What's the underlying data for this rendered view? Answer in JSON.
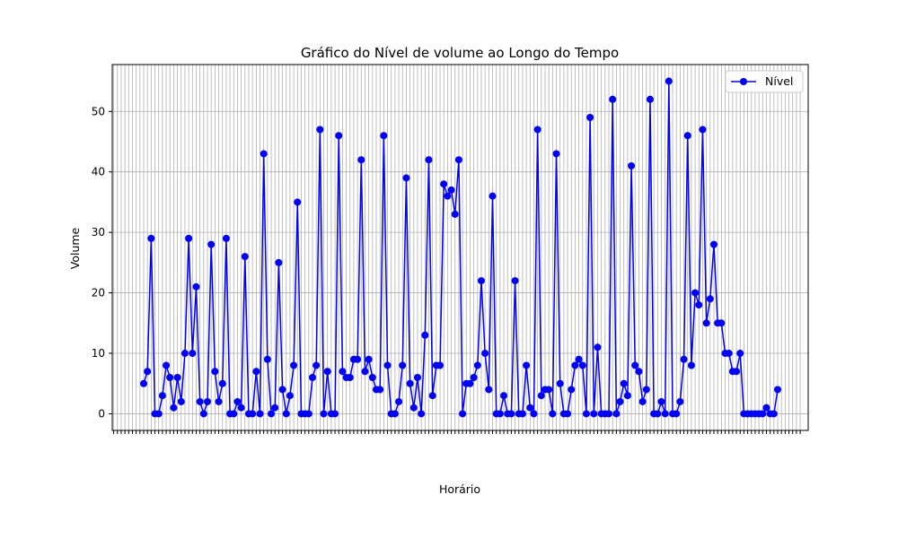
{
  "chart_data": {
    "type": "line",
    "title": "Gráfico do Nível de volume ao Longo do Tempo",
    "xlabel": "Horário",
    "ylabel": "Volume",
    "ylim": [
      -2.75,
      57.75
    ],
    "yticks": [
      0,
      10,
      20,
      30,
      40,
      50
    ],
    "grid": true,
    "legend_position": "top-right",
    "line_color": "#0000ff",
    "marker": "circle",
    "series": [
      {
        "name": "Nível",
        "values": [
          5,
          7,
          29,
          0,
          0,
          3,
          8,
          6,
          1,
          6,
          2,
          10,
          29,
          10,
          21,
          2,
          0,
          2,
          28,
          7,
          2,
          5,
          29,
          0,
          0,
          2,
          1,
          26,
          0,
          0,
          7,
          0,
          43,
          9,
          0,
          1,
          25,
          4,
          0,
          3,
          8,
          35,
          0,
          0,
          0,
          6,
          8,
          47,
          0,
          7,
          0,
          0,
          46,
          7,
          6,
          6,
          9,
          9,
          42,
          7,
          9,
          6,
          4,
          4,
          46,
          8,
          0,
          0,
          2,
          8,
          39,
          5,
          1,
          6,
          0,
          13,
          42,
          3,
          8,
          8,
          38,
          36,
          37,
          33,
          42,
          0,
          5,
          5,
          6,
          8,
          22,
          10,
          4,
          36,
          0,
          0,
          3,
          0,
          0,
          22,
          0,
          0,
          8,
          1,
          0,
          47,
          3,
          4,
          4,
          0,
          43,
          5,
          0,
          0,
          4,
          8,
          9,
          8,
          0,
          49,
          0,
          11,
          0,
          0,
          0,
          52,
          0,
          2,
          5,
          3,
          41,
          8,
          7,
          2,
          4,
          52,
          0,
          0,
          2,
          0,
          55,
          0,
          0,
          2,
          9,
          46,
          8,
          20,
          18,
          47,
          15,
          19,
          28,
          15,
          15,
          10,
          10,
          7,
          7,
          10,
          0,
          0,
          0,
          0,
          0,
          0,
          1,
          0,
          0,
          4
        ]
      }
    ]
  }
}
